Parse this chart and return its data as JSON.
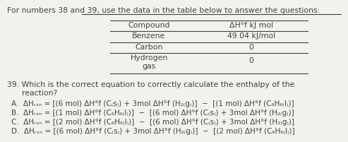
{
  "bg_color": "#f2f2ed",
  "text_color": "#404040",
  "font_family": "DejaVu Sans",
  "font_size": 7.8,
  "header_line1": "For numbers 38 and 39, ",
  "header_underlined": "use the data in the table below",
  "header_line2": " to answer the questions:",
  "col1_label": "Compound",
  "col2_label": "ΔH°f kJ mol",
  "rows": [
    [
      "Benzene",
      "49.04 kJ/mol"
    ],
    [
      "Carbon",
      "0"
    ],
    [
      "Hydrogen\ngas",
      "0"
    ]
  ],
  "q39_line1": "39. Which is the correct equation to correctly calculate the enthalpy of the",
  "q39_line2": "      reaction?",
  "optA": "A.  ΔHᵣₓₙ = [(6 mol) ΔH°f (C₍s₎) + 3mol ΔH°f (H₂₍g₎)]  −  [(1 mol) ΔH°f (C₆H₆₍l₎)]",
  "optB": "B.  ΔHᵣₓₙ = [(1 mol) ΔH°f (C₆H₆₍l₎)]  −  [(6 mol) ΔH°f (C₍s₎) + 3mol ΔH°f (H₂₍g₎)]",
  "optC": "C.  ΔHᵣₓₙ = [(2 mol) ΔH°f (C₆H₆₍l₎)]  −  [(6 mol) ΔH°f (C₍s₎) + 3mol ΔH°f (H₂₍g₎)]",
  "optD": "D.  ΔHᵣₓₙ = [(6 mol) ΔH°f (C₍s₎) + 3mol ΔH°f (H₂₍g₎)]  −  [(2 mol) ΔH°f (C₆H₆₍l₎)]"
}
